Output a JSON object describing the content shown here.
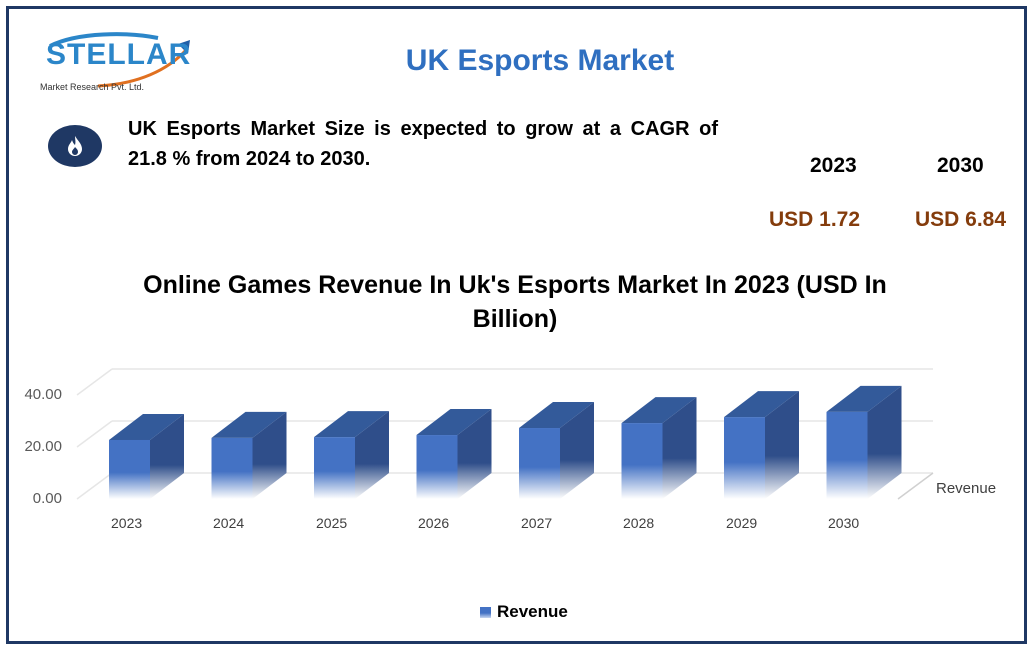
{
  "header": {
    "logo_text": "STELLAR",
    "logo_subtext": "Market Research Pvt. Ltd.",
    "title": "UK Esports Market"
  },
  "summary": {
    "icon": "flame-icon",
    "text": "UK Esports Market Size is expected to grow at a CAGR of 21.8 % from 2024 to 2030."
  },
  "market_size": {
    "start_year": "2023",
    "end_year": "2030",
    "start_value": "USD 1.72",
    "end_value": "USD 6.84",
    "value_color": "#843c0c"
  },
  "chart_data": {
    "type": "bar",
    "style": "3d-column",
    "title": "Online Games Revenue In Uk's Esports Market In 2023 (USD In Billion)",
    "categories": [
      "2023",
      "2024",
      "2025",
      "2026",
      "2027",
      "2028",
      "2029",
      "2030"
    ],
    "series": [
      {
        "name": "Revenue",
        "values": [
          22.7,
          23.5,
          23.8,
          24.6,
          27.3,
          29.2,
          31.5,
          33.5
        ],
        "color": "#4472c4"
      }
    ],
    "yticks": [
      "0.00",
      "20.00",
      "40.00"
    ],
    "ylim": [
      0,
      40
    ],
    "xlabel": "",
    "ylabel": "",
    "depth_axis_label": "Revenue",
    "grid": true,
    "legend": {
      "position": "bottom",
      "entries": [
        "Revenue"
      ]
    }
  }
}
